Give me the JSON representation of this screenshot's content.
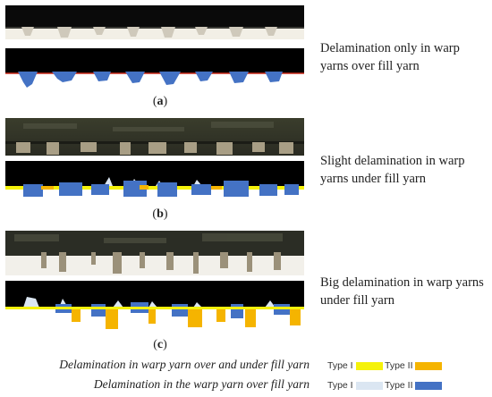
{
  "panels": [
    {
      "id": "a",
      "label": "a",
      "description": "Delamination only in warp yarns over fill yarn"
    },
    {
      "id": "b",
      "label": "b",
      "description": "Slight delamination in warp yarns under fill yarn"
    },
    {
      "id": "c",
      "label": "c",
      "description": "Big delamination in warp yarns under fill yarn"
    }
  ],
  "legend": {
    "row1": {
      "text": "Delamination in warp yarn over and under fill yarn",
      "type1_label": "Type I",
      "type2_label": "Type II",
      "type1_color": "#f5f20a",
      "type2_color": "#f5b400"
    },
    "row2": {
      "text": "Delamination in the warp yarn over fill yarn",
      "type1_label": "Type I",
      "type2_label": "Type II",
      "type1_color": "#dbe6f2",
      "type2_color": "#4472c4"
    }
  },
  "colors": {
    "background": "#ffffff",
    "seg_background": "#000000",
    "blue": "#4472c4",
    "light_blue": "#dbe6f2",
    "yellow": "#f5f20a",
    "orange": "#f5b400",
    "red_line": "#cc2a1a"
  }
}
